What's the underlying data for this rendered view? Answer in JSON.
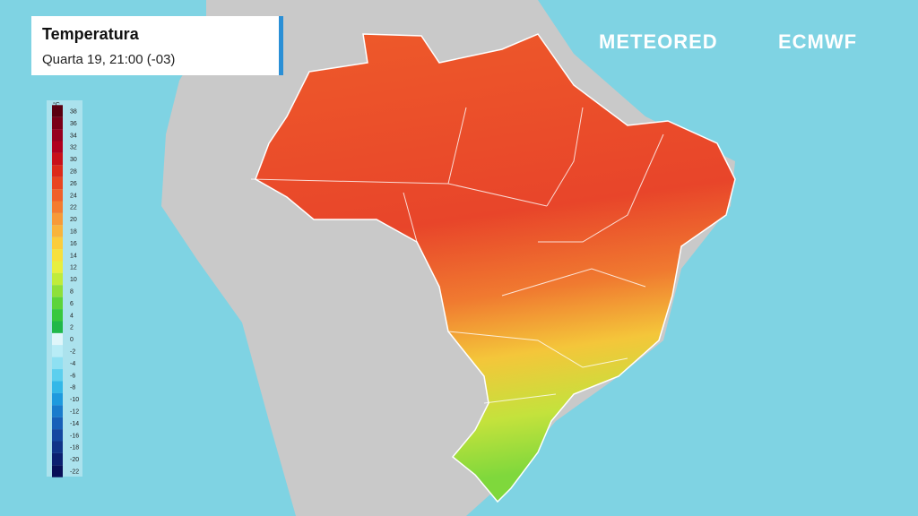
{
  "header": {
    "title": "Temperatura",
    "subtitle": "Quarta 19, 21:00 (-03)"
  },
  "logos": [
    "METEORED",
    "ECMWF"
  ],
  "legend": {
    "unit": "°C",
    "ticks": [
      38,
      36,
      34,
      32,
      30,
      28,
      26,
      24,
      22,
      20,
      18,
      16,
      14,
      12,
      10,
      8,
      6,
      4,
      2,
      0,
      -2,
      -4,
      -6,
      -8,
      -10,
      -12,
      -14,
      -16,
      -18,
      -20,
      -22
    ],
    "colors": [
      "#5a0010",
      "#7a0018",
      "#96001f",
      "#b0001f",
      "#c8101a",
      "#dc2a1a",
      "#e84520",
      "#f0602a",
      "#f47c30",
      "#f79a38",
      "#f9b43c",
      "#fbcd3c",
      "#f7e03c",
      "#e8ef3e",
      "#c0ec3a",
      "#8ee03a",
      "#5cd43a",
      "#38c83e",
      "#20b84a",
      "#dff6fa",
      "#b8ecf6",
      "#8ee0f2",
      "#5ccfee",
      "#33b8e8",
      "#1e9ade",
      "#1a7ccc",
      "#1860b8",
      "#1448a0",
      "#103488",
      "#0c2070",
      "#081058"
    ]
  }
}
